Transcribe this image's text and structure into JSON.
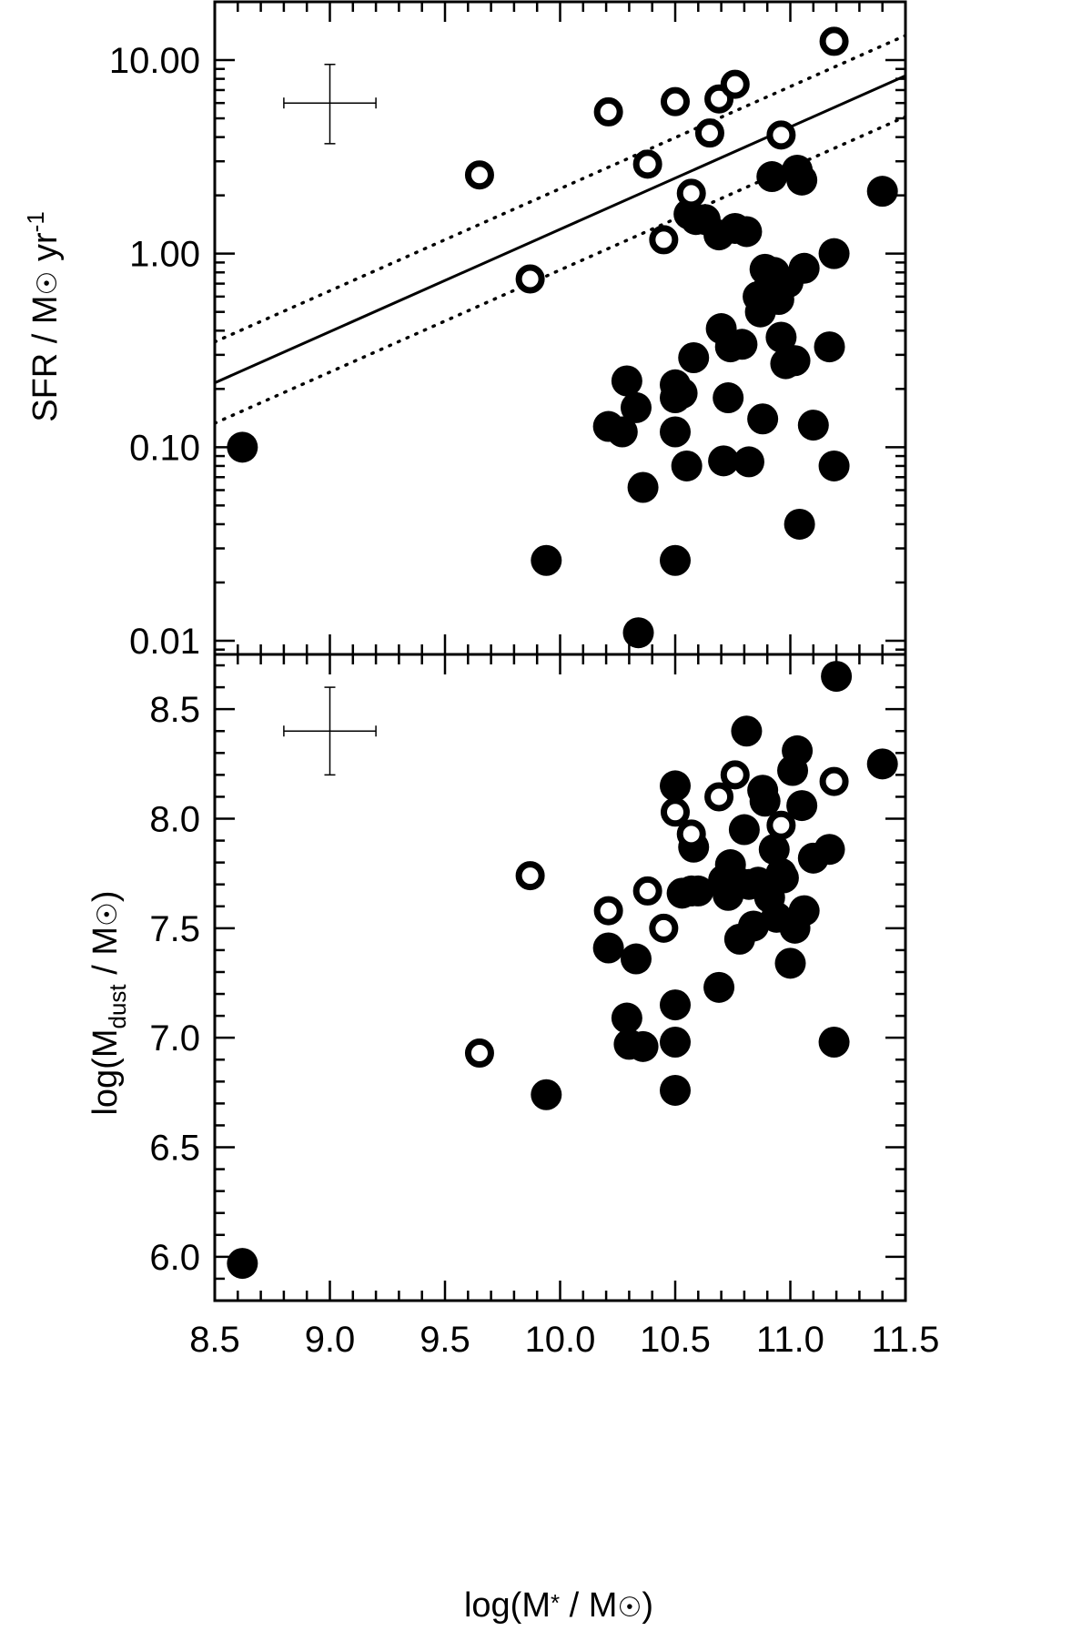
{
  "chart_data": [
    {
      "type": "scatter",
      "panel": "top",
      "ylabel": {
        "main": "SFR / M",
        "mid": " yr",
        "sup": "-1"
      },
      "xlim": [
        8.5,
        11.5
      ],
      "ylim": [
        0.0085,
        20
      ],
      "yscale": "log",
      "yticks": [
        0.01,
        0.1,
        1,
        10
      ],
      "yticklabels": [
        "0.01",
        "0.10",
        "1.00",
        "10.00"
      ],
      "xticks": [
        8.5,
        9.0,
        9.5,
        10.0,
        10.5,
        11.0,
        11.5
      ],
      "grid": false,
      "fit_line": {
        "x": [
          8.5,
          11.5
        ],
        "y": [
          0.215,
          8.3
        ]
      },
      "scatter_lines": [
        {
          "x": [
            8.5,
            11.5
          ],
          "y": [
            0.35,
            13.4
          ]
        },
        {
          "x": [
            8.5,
            11.5
          ],
          "y": [
            0.133,
            5.1
          ]
        }
      ],
      "error_bar": {
        "x": 9.0,
        "y": 6.0,
        "xerr_low": 8.8,
        "xerr_high": 9.2,
        "yerr_low": 3.7,
        "yerr_high": 9.5
      },
      "series": [
        {
          "marker": "open",
          "x": [
            9.65,
            9.87,
            10.21,
            10.38,
            10.45,
            10.5,
            10.57,
            10.65,
            10.69,
            10.76,
            10.96,
            11.19
          ],
          "y": [
            2.55,
            0.74,
            5.4,
            2.9,
            1.18,
            6.1,
            2.05,
            4.2,
            6.3,
            7.5,
            4.1,
            12.5
          ]
        },
        {
          "marker": "filled",
          "x": [
            8.62,
            9.94,
            10.21,
            10.27,
            10.29,
            10.33,
            10.34,
            10.36,
            10.5,
            10.5,
            10.5,
            10.5,
            10.53,
            10.55,
            10.56,
            10.58,
            10.59,
            10.63,
            10.69,
            10.7,
            10.71,
            10.73,
            10.74,
            10.76,
            10.79,
            10.81,
            10.82,
            10.86,
            10.87,
            10.88,
            10.89,
            10.9,
            10.92,
            10.93,
            10.95,
            10.96,
            10.98,
            10.99,
            11.02,
            11.03,
            11.04,
            11.05,
            11.06,
            11.1,
            11.17,
            11.19,
            11.19,
            11.4
          ],
          "y": [
            0.1,
            0.026,
            0.128,
            0.12,
            0.22,
            0.16,
            0.011,
            0.062,
            0.21,
            0.18,
            0.12,
            0.026,
            0.19,
            0.08,
            1.6,
            0.29,
            1.5,
            1.5,
            1.25,
            0.41,
            0.085,
            0.18,
            0.33,
            1.35,
            0.34,
            1.3,
            0.084,
            0.6,
            0.5,
            0.14,
            0.83,
            0.65,
            2.5,
            0.8,
            0.58,
            0.37,
            0.27,
            0.71,
            0.28,
            2.7,
            0.04,
            2.4,
            0.84,
            0.13,
            0.33,
            0.08,
            1.0,
            2.1
          ]
        }
      ]
    },
    {
      "type": "scatter",
      "panel": "bottom",
      "ylabel": {
        "pre": "log(M",
        "sub": "dust",
        "mid": " / M",
        "post": ")"
      },
      "xlabel": {
        "pre": "log(M",
        "star": "*",
        "mid": " / M",
        "post": ")"
      },
      "xlim": [
        8.5,
        11.5
      ],
      "ylim": [
        5.8,
        8.75
      ],
      "yticks": [
        6.0,
        6.5,
        7.0,
        7.5,
        8.0,
        8.5
      ],
      "yticklabels": [
        "6.0",
        "6.5",
        "7.0",
        "7.5",
        "8.0",
        "8.5"
      ],
      "xticks": [
        8.5,
        9.0,
        9.5,
        10.0,
        10.5,
        11.0,
        11.5
      ],
      "xticklabels": [
        "8.5",
        "9.0",
        "9.5",
        "10.0",
        "10.5",
        "11.0",
        "11.5"
      ],
      "grid": false,
      "error_bar": {
        "x": 9.0,
        "y": 8.4,
        "xerr_low": 8.8,
        "xerr_high": 9.2,
        "yerr_low": 8.2,
        "yerr_high": 8.6
      },
      "series": [
        {
          "marker": "open",
          "x": [
            9.65,
            9.87,
            10.21,
            10.38,
            10.45,
            10.5,
            10.57,
            10.69,
            10.76,
            10.96,
            11.19
          ],
          "y": [
            6.93,
            7.74,
            7.58,
            7.67,
            7.5,
            8.03,
            7.93,
            8.1,
            8.2,
            7.97,
            8.17
          ]
        },
        {
          "marker": "filled",
          "x": [
            8.62,
            9.94,
            10.21,
            10.29,
            10.3,
            10.33,
            10.36,
            10.5,
            10.5,
            10.5,
            10.5,
            10.53,
            10.57,
            10.58,
            10.6,
            10.69,
            10.71,
            10.72,
            10.73,
            10.74,
            10.76,
            10.78,
            10.8,
            10.81,
            10.82,
            10.84,
            10.86,
            10.88,
            10.89,
            10.9,
            10.91,
            10.93,
            10.94,
            10.96,
            10.97,
            11.0,
            11.01,
            11.02,
            11.03,
            11.05,
            11.06,
            11.1,
            11.17,
            11.19,
            11.2,
            11.4
          ],
          "y": [
            5.97,
            6.74,
            7.41,
            7.09,
            6.97,
            7.36,
            6.96,
            8.15,
            7.15,
            6.98,
            6.76,
            7.66,
            7.67,
            7.87,
            7.67,
            7.23,
            7.72,
            7.69,
            7.65,
            7.79,
            7.72,
            7.45,
            7.95,
            8.4,
            7.7,
            7.51,
            7.71,
            8.13,
            8.08,
            7.67,
            7.64,
            7.86,
            7.55,
            7.75,
            7.73,
            7.34,
            8.22,
            7.5,
            8.31,
            8.06,
            7.58,
            7.82,
            7.86,
            6.98,
            8.65,
            8.25
          ]
        }
      ]
    }
  ]
}
